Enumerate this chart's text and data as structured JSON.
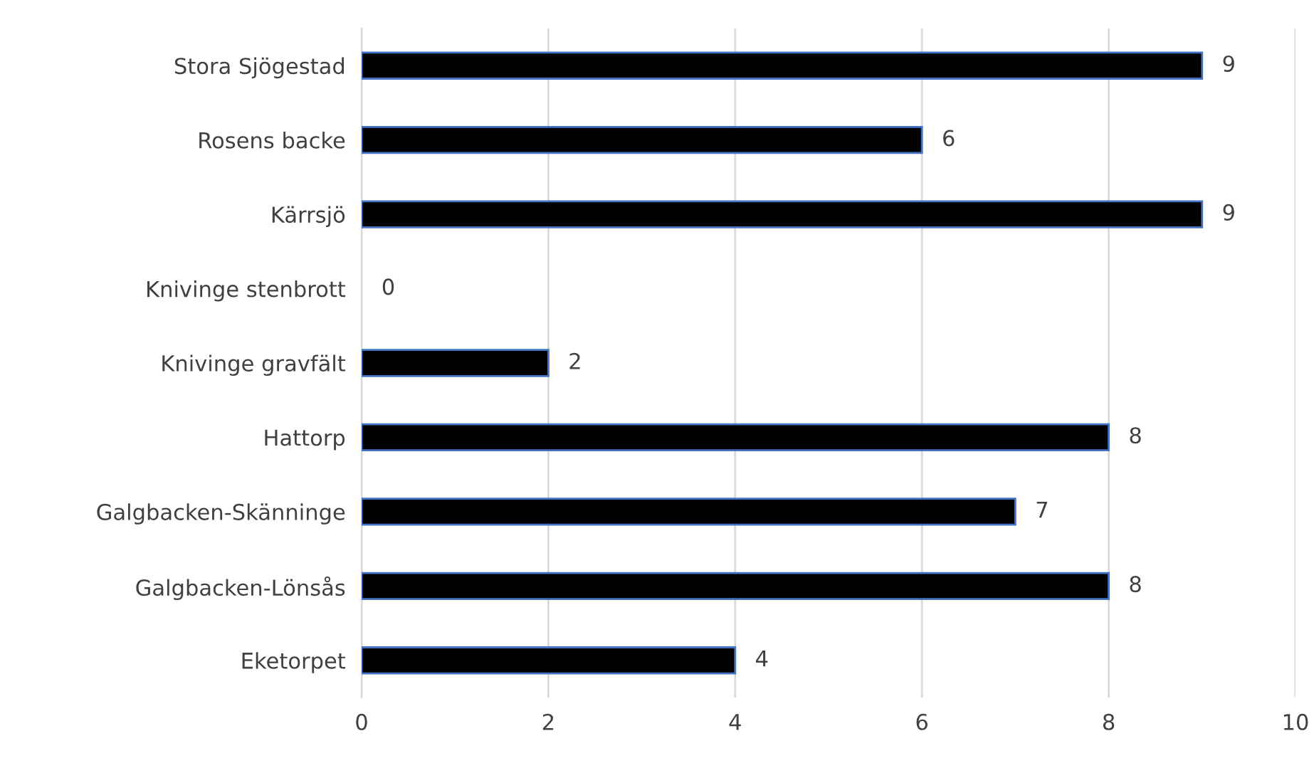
{
  "chart_data": {
    "type": "bar",
    "orientation": "horizontal",
    "categories": [
      "Stora Sjögestad",
      "Rosens backe",
      "Kärrsjö",
      "Knivinge stenbrott",
      "Knivinge gravfält",
      "Hattorp",
      "Galgbacken-Skänninge",
      "Galgbacken-Lönsås",
      "Eketorpet"
    ],
    "values": [
      9,
      6,
      9,
      0,
      2,
      8,
      7,
      8,
      4
    ],
    "color": "#000000",
    "xlim": [
      0,
      10
    ],
    "xticks": [
      0,
      2,
      4,
      6,
      8,
      10
    ],
    "grid": "x",
    "data_labels": true
  }
}
